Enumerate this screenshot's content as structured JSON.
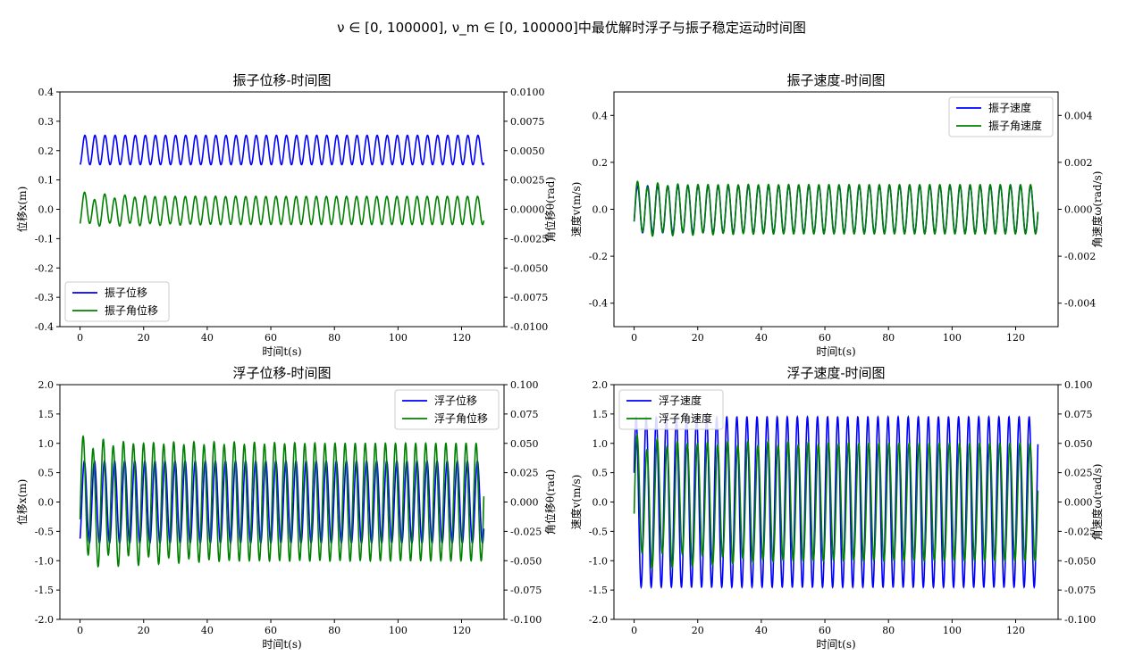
{
  "suptitle": "ν ∈ [0, 100000], ν_m ∈ [0, 100000]中最优解时浮子与振子稳定运动时间图",
  "colors": {
    "series1": "#0000ff",
    "series2": "#008000"
  },
  "chart_data": [
    {
      "type": "line",
      "title": "振子位移-时间图",
      "xlabel": "时间t(s)",
      "ylabel": "位移x(m)",
      "y2label": "角位移θ(rad)",
      "xlim": [
        -6.35,
        133.35
      ],
      "ylim": [
        -0.4,
        0.4
      ],
      "y2lim": [
        -0.01,
        0.01
      ],
      "xticks": [
        0,
        20,
        40,
        60,
        80,
        100,
        120
      ],
      "yticks": [
        -0.4,
        -0.3,
        -0.2,
        -0.1,
        0.0,
        0.1,
        0.2,
        0.3,
        0.4
      ],
      "ytick_labels": [
        "-0.4",
        "-0.3",
        "-0.2",
        "-0.1",
        "0.0",
        "0.1",
        "0.2",
        "0.3",
        "0.4"
      ],
      "y2ticks": [
        -0.01,
        -0.0075,
        -0.005,
        -0.0025,
        0.0,
        0.0025,
        0.005,
        0.0075,
        0.01
      ],
      "y2tick_labels": [
        "-0.0100",
        "-0.0075",
        "-0.0050",
        "-0.0025",
        "0.0000",
        "0.0025",
        "0.0050",
        "0.0075",
        "0.0100"
      ],
      "legend": "lower-left",
      "grid": false,
      "series": [
        {
          "name": "振子位移",
          "axis": "left",
          "t0": 0,
          "t1": 127,
          "center": 0.202,
          "amplitude": 0.05,
          "period": 3.17,
          "phase": -1.45
        },
        {
          "name": "振子角位移",
          "axis": "right",
          "t0": 0,
          "t1": 127,
          "center": -0.0001,
          "amplitude": 0.0012,
          "period": 3.17,
          "phase": -1.2,
          "transient": 0.0004,
          "decay": 15
        }
      ]
    },
    {
      "type": "line",
      "title": "振子速度-时间图",
      "xlabel": "时间t(s)",
      "ylabel": "速度v(m/s)",
      "y2label": "角速度ω(rad/s)",
      "xlim": [
        -6.35,
        133.35
      ],
      "ylim": [
        -0.5,
        0.5
      ],
      "y2lim": [
        -0.005,
        0.005
      ],
      "xticks": [
        0,
        20,
        40,
        60,
        80,
        100,
        120
      ],
      "yticks": [
        -0.4,
        -0.2,
        0.0,
        0.2,
        0.4
      ],
      "ytick_labels": [
        "-0.4",
        "-0.2",
        "0.0",
        "0.2",
        "0.4"
      ],
      "y2ticks": [
        -0.004,
        -0.002,
        0.0,
        0.002,
        0.004
      ],
      "y2tick_labels": [
        "-0.004",
        "-0.002",
        "0.000",
        "0.002",
        "0.004"
      ],
      "legend": "upper-right",
      "grid": false,
      "series": [
        {
          "name": "振子速度",
          "axis": "left",
          "t0": 0,
          "t1": 127,
          "center": 0.0,
          "amplitude": 0.1,
          "period": 3.17,
          "phase": -0.55
        },
        {
          "name": "振子角速度",
          "axis": "right",
          "t0": 0,
          "t1": 127,
          "center": 0.0,
          "amplitude": 0.00105,
          "period": 3.17,
          "phase": -0.5,
          "transient": 0.00018,
          "decay": 15
        }
      ]
    },
    {
      "type": "line",
      "title": "浮子位移-时间图",
      "xlabel": "时间t(s)",
      "ylabel": "位移x(m)",
      "y2label": "角位移θ(rad)",
      "xlim": [
        -6.35,
        133.35
      ],
      "ylim": [
        -2.0,
        2.0
      ],
      "y2lim": [
        -0.1,
        0.1
      ],
      "xticks": [
        0,
        20,
        40,
        60,
        80,
        100,
        120
      ],
      "yticks": [
        -2.0,
        -1.5,
        -1.0,
        -0.5,
        0.0,
        0.5,
        1.0,
        1.5,
        2.0
      ],
      "ytick_labels": [
        "-2.0",
        "-1.5",
        "-1.0",
        "-0.5",
        "0.0",
        "0.5",
        "1.0",
        "1.5",
        "2.0"
      ],
      "y2ticks": [
        -0.1,
        -0.075,
        -0.05,
        -0.025,
        0.0,
        0.025,
        0.05,
        0.075,
        0.1
      ],
      "y2tick_labels": [
        "-0.100",
        "-0.075",
        "-0.050",
        "-0.025",
        "0.000",
        "0.025",
        "0.050",
        "0.075",
        "0.100"
      ],
      "legend": "upper-right",
      "grid": false,
      "series": [
        {
          "name": "浮子位移",
          "axis": "left",
          "t0": 0,
          "t1": 127,
          "center": 0.0,
          "amplitude": 0.7,
          "period": 3.17,
          "phase": -1.1
        },
        {
          "name": "浮子角位移",
          "axis": "right",
          "t0": 0,
          "t1": 127,
          "center": 0.0,
          "amplitude": 0.05,
          "period": 3.17,
          "phase": -0.3,
          "transient": 0.008,
          "decay": 25
        }
      ]
    },
    {
      "type": "line",
      "title": "浮子速度-时间图",
      "xlabel": "时间t(s)",
      "ylabel": "速度v(m/s)",
      "y2label": "角速度ω(rad/s)",
      "xlim": [
        -6.35,
        133.35
      ],
      "ylim": [
        -2.0,
        2.0
      ],
      "y2lim": [
        -0.1,
        0.1
      ],
      "xticks": [
        0,
        20,
        40,
        60,
        80,
        100,
        120
      ],
      "yticks": [
        -2.0,
        -1.5,
        -1.0,
        -0.5,
        0.0,
        0.5,
        1.0,
        1.5,
        2.0
      ],
      "ytick_labels": [
        "-2.0",
        "-1.5",
        "-1.0",
        "-0.5",
        "0.0",
        "0.5",
        "1.0",
        "1.5",
        "2.0"
      ],
      "y2ticks": [
        -0.1,
        -0.075,
        -0.05,
        -0.025,
        0.0,
        0.025,
        0.05,
        0.075,
        0.1
      ],
      "y2tick_labels": [
        "-0.100",
        "-0.075",
        "-0.050",
        "-0.025",
        "0.000",
        "0.025",
        "0.050",
        "0.075",
        "0.100"
      ],
      "legend": "upper-left",
      "grid": false,
      "series": [
        {
          "name": "浮子速度",
          "axis": "left",
          "t0": 0,
          "t1": 127,
          "center": 0.0,
          "amplitude": 1.45,
          "period": 3.17,
          "phase": 0.35
        },
        {
          "name": "浮子角速度",
          "axis": "right",
          "t0": 0,
          "t1": 127,
          "center": 0.0,
          "amplitude": 0.05,
          "period": 3.17,
          "phase": -0.2,
          "transient": 0.01,
          "decay": 25
        }
      ]
    }
  ]
}
